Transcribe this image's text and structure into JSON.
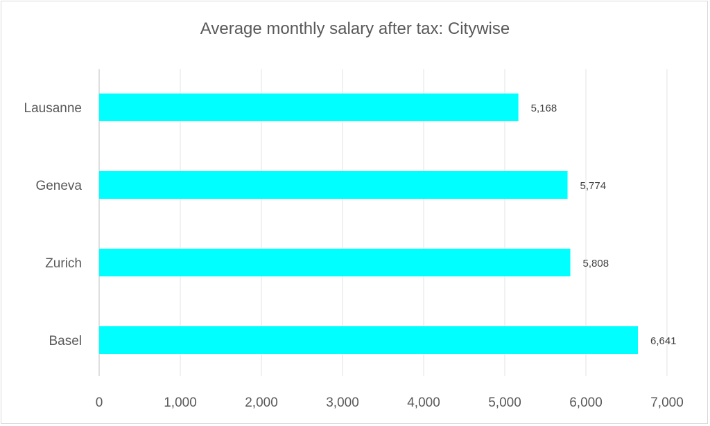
{
  "chart_data": {
    "type": "bar",
    "orientation": "horizontal",
    "title": "Average monthly salary after tax: Citywise",
    "categories": [
      "Lausanne",
      "Geneva",
      "Zurich",
      "Basel"
    ],
    "values": [
      5168,
      5774,
      5808,
      6641
    ],
    "data_labels": [
      "5,168",
      "5,774",
      "5,808",
      "6,641"
    ],
    "xlim": [
      0,
      7000
    ],
    "x_ticks": [
      "0",
      "1,000",
      "2,000",
      "3,000",
      "4,000",
      "5,000",
      "6,000",
      "7,000"
    ],
    "grid": true,
    "legend": "none",
    "bar_color": "#00FFFF",
    "xlabel": "",
    "ylabel": ""
  }
}
